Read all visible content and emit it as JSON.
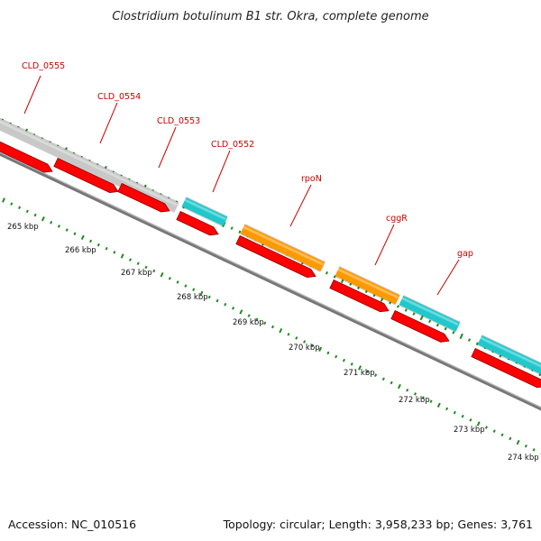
{
  "title": "Clostridium botulinum B1 str. Okra, complete genome",
  "footer": {
    "accession": "Accession: NC_010516",
    "topology": "Topology: circular; Length: 3,958,233 bp; Genes: 3,761"
  },
  "colors": {
    "cds": "#ff0000",
    "grey_feature": "#c8c8c8",
    "cyan_feature": "#20c8cc",
    "orange_feature": "#ff9900",
    "backbone": "#777777",
    "tick": "#1e8c1e",
    "label": "#cc0000"
  },
  "ticks": [
    {
      "label": "265 kbp"
    },
    {
      "label": "266 kbp"
    },
    {
      "label": "267 kbp"
    },
    {
      "label": "268 kbp"
    },
    {
      "label": "269 kbp"
    },
    {
      "label": "270 kbp"
    },
    {
      "label": "271 kbp"
    },
    {
      "label": "272 kbp"
    },
    {
      "label": "273 kbp"
    },
    {
      "label": "274 kbp"
    }
  ],
  "gene_labels": [
    {
      "text": "CLD_0555"
    },
    {
      "text": "CLD_0554"
    },
    {
      "text": "CLD_0553"
    },
    {
      "text": "CLD_0552"
    },
    {
      "text": "rpoN"
    },
    {
      "text": "cggR"
    },
    {
      "text": "gap"
    }
  ]
}
